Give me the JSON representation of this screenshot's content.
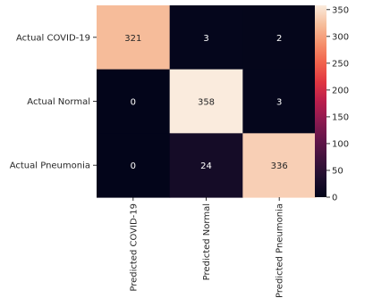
{
  "chart_data": {
    "type": "heatmap",
    "title": "",
    "xlabel": "",
    "ylabel": "",
    "row_labels": [
      "Actual COVID-19",
      "Actual Normal",
      "Actual Pneumonia"
    ],
    "col_labels": [
      "Predicted COVID-19",
      "Predicted Normal",
      "Predicted Pneumonia"
    ],
    "values": [
      [
        321,
        3,
        2
      ],
      [
        0,
        358,
        3
      ],
      [
        0,
        24,
        336
      ]
    ],
    "colormap": "rocket",
    "colorbar": {
      "min": 0,
      "max": 358,
      "ticks": [
        0,
        50,
        100,
        150,
        200,
        250,
        300,
        350
      ],
      "tick_labels": [
        "0",
        "50",
        "100",
        "150",
        "200",
        "250",
        "300",
        "350"
      ]
    }
  }
}
